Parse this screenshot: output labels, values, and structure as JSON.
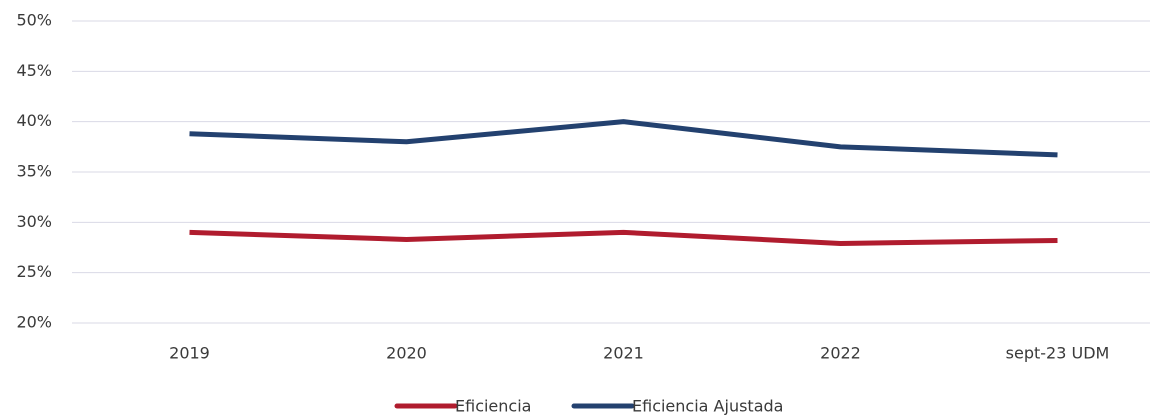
{
  "chart_data": {
    "type": "line",
    "categories": [
      "2019",
      "2020",
      "2021",
      "2022",
      "sept-23 UDM"
    ],
    "series": [
      {
        "name": "Eficiencia",
        "color": "#b01c2e",
        "values": [
          29.0,
          28.3,
          29.0,
          27.9,
          28.2
        ]
      },
      {
        "name": "Eficiencia Ajustada",
        "color": "#23416f",
        "values": [
          38.8,
          38.0,
          40.0,
          37.5,
          36.7
        ]
      }
    ],
    "ylim": [
      20,
      50
    ],
    "yticks": [
      {
        "value": 20,
        "label": "20%"
      },
      {
        "value": 25,
        "label": "25%"
      },
      {
        "value": 30,
        "label": "30%"
      },
      {
        "value": 35,
        "label": "35%"
      },
      {
        "value": 40,
        "label": "40%"
      },
      {
        "value": 45,
        "label": "45%"
      },
      {
        "value": 50,
        "label": "50%"
      }
    ],
    "grid": true,
    "legend": "bottom"
  }
}
